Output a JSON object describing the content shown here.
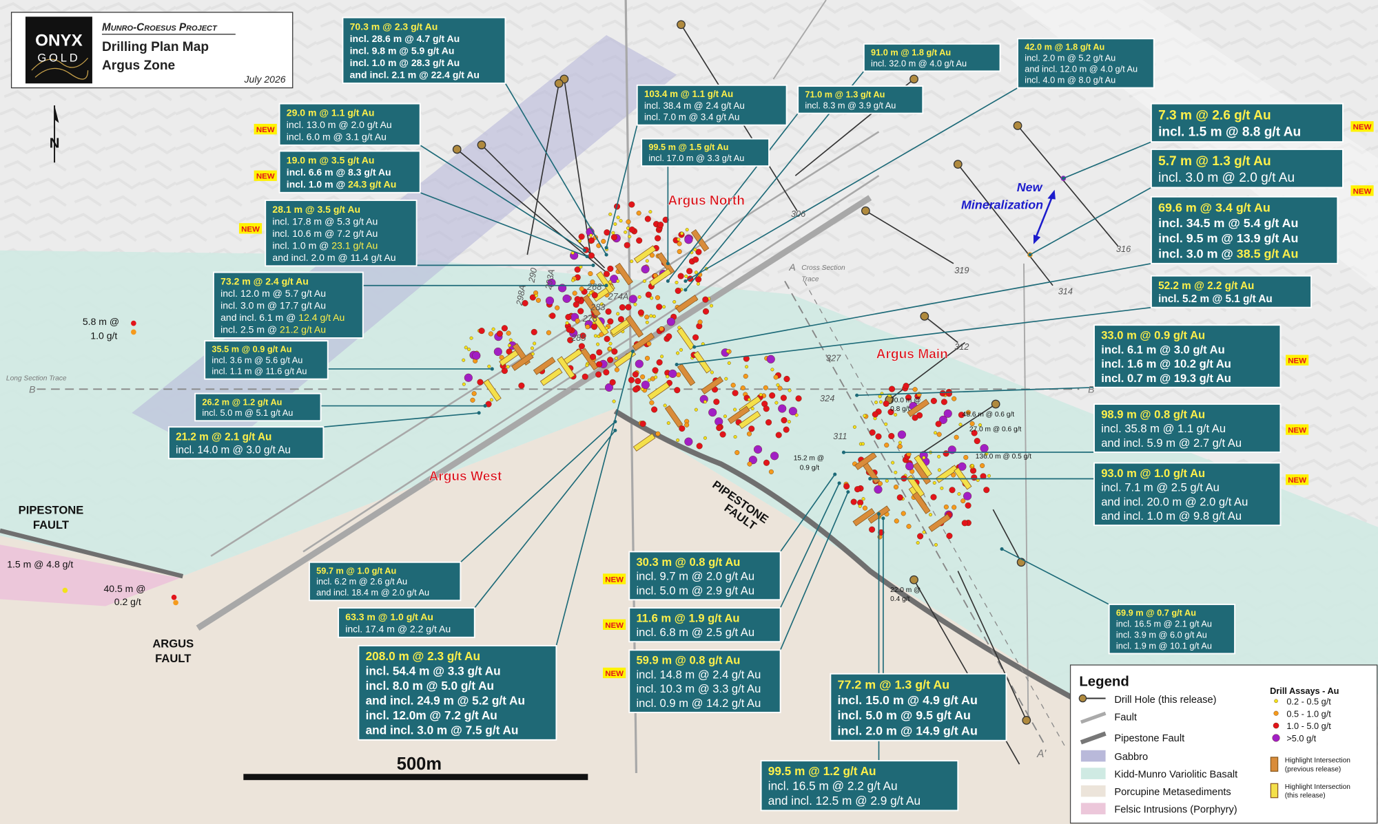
{
  "header": {
    "logo_top": "ONYX",
    "logo_bottom": "GOLD",
    "project": "Munro-Croesus Project",
    "title": "Drilling Plan Map",
    "subtitle": "Argus Zone",
    "date": "July 2026"
  },
  "north": "N",
  "callouts": [
    {
      "lines": [
        "70.3 m @ 2.3 g/t Au",
        "incl. 28.6 m @ 4.7 g/t Au",
        "incl. 9.8 m @ 5.9 g/t Au",
        "incl. 1.0 m @ 28.3 g/t Au",
        "and incl. 2.1 m @ 22.4 g/t Au"
      ]
    },
    {
      "lines": [
        "29.0 m @ 1.1 g/t Au",
        "incl. 13.0 m @ 2.0 g/t Au",
        "incl. 6.0 m @ 3.1 g/t Au"
      ],
      "new": "NEW"
    },
    {
      "lines": [
        "19.0 m @ 3.5 g/t Au",
        "incl. 6.6 m @ 8.3 g/t Au",
        [
          "incl. 1.0 m @ ",
          "24.3 g/t Au"
        ]
      ],
      "new": "NEW"
    },
    {
      "lines": [
        "28.1 m @ 3.5 g/t Au",
        "incl. 17.8 m @ 5.3 g/t Au",
        "incl. 10.6 m @ 7.2 g/t Au",
        [
          "incl. 1.0 m @ ",
          "23.1 g/t Au"
        ],
        "and incl. 2.0 m @ 11.4 g/t Au"
      ],
      "new": "NEW"
    },
    {
      "lines": [
        "73.2 m @ 2.4 g/t Au",
        "incl. 12.0 m @ 5.7 g/t Au",
        "incl. 3.0 m @ 17.7 g/t Au",
        [
          "and incl. 6.1 m @ ",
          "12.4 g/t Au"
        ],
        [
          "incl. 2.5 m @ ",
          "21.2 g/t Au"
        ]
      ]
    },
    {
      "lines": [
        "35.5 m @ 0.9 g/t Au",
        "incl. 3.6 m @ 5.6 g/t Au",
        "incl. 1.1 m @ 11.6 g/t Au"
      ]
    },
    {
      "lines": [
        "26.2 m @ 1.2 g/t Au",
        "incl. 5.0 m @ 5.1 g/t Au"
      ]
    },
    {
      "lines": [
        "21.2 m @ 2.1 g/t Au",
        "incl. 14.0 m @ 3.0 g/t Au"
      ]
    },
    {
      "lines": [
        "103.4 m @ 1.1 g/t Au",
        "incl. 38.4 m @ 2.4 g/t Au",
        "incl. 7.0 m @ 3.4 g/t Au"
      ]
    },
    {
      "lines": [
        "99.5 m @ 1.5 g/t Au",
        "incl. 17.0 m @ 3.3 g/t Au"
      ]
    },
    {
      "lines": [
        "91.0 m @ 1.8 g/t Au",
        "incl. 32.0 m @ 4.0 g/t Au"
      ]
    },
    {
      "lines": [
        "71.0 m @ 1.3 g/t Au",
        "incl. 8.3 m @ 3.9 g/t Au"
      ]
    },
    {
      "lines": [
        "42.0 m @ 1.8 g/t Au",
        "incl. 2.0 m @ 5.2 g/t Au",
        "and incl. 12.0 m @ 4.0 g/t Au",
        "incl. 4.0 m @ 8.0 g/t Au"
      ]
    },
    {
      "lines": [
        "7.3 m @ 2.6 g/t Au",
        "incl. 1.5 m @ 8.8 g/t Au"
      ],
      "new": "NEW"
    },
    {
      "lines": [
        "5.7 m @ 1.3 g/t Au",
        "incl. 3.0 m @ 2.0 g/t Au"
      ],
      "new": "NEW"
    },
    {
      "lines": [
        "69.6 m @ 3.4 g/t Au",
        "incl. 34.5 m @ 5.4 g/t Au",
        "incl. 9.5 m @ 13.9 g/t Au",
        [
          "incl. 3.0 m @ ",
          "38.5 g/t Au"
        ]
      ]
    },
    {
      "lines": [
        "52.2 m @ 2.2 g/t Au",
        "incl. 5.2 m @ 5.1 g/t Au"
      ]
    },
    {
      "lines": [
        "33.0 m @ 0.9 g/t Au",
        "incl. 6.1 m @ 3.0 g/t Au",
        "incl. 1.6 m @ 10.2 g/t Au",
        "incl. 0.7 m @ 19.3 g/t Au"
      ],
      "new": "NEW"
    },
    {
      "lines": [
        "98.9 m @ 0.8 g/t Au",
        "incl. 35.8 m @ 1.1 g/t Au",
        "and incl. 5.9 m @ 2.7 g/t Au"
      ],
      "new": "NEW"
    },
    {
      "lines": [
        "93.0 m @ 1.0 g/t Au",
        "incl. 7.1 m @ 2.5 g/t Au",
        "and incl. 20.0 m @ 2.0 g/t Au",
        "and incl. 1.0 m @ 9.8 g/t Au"
      ],
      "new": "NEW"
    },
    {
      "lines": [
        "69.9 m @ 0.7 g/t Au",
        "incl. 16.5 m @ 2.1 g/t Au",
        "incl. 3.9 m @ 6.0 g/t Au",
        "incl. 1.9 m @ 10.1 g/t Au"
      ]
    },
    {
      "lines": [
        "59.7 m @ 1.0 g/t Au",
        "incl. 6.2 m @ 2.6 g/t Au",
        "and incl. 18.4 m @ 2.0 g/t Au"
      ]
    },
    {
      "lines": [
        "63.3 m @ 1.0 g/t Au",
        "incl. 17.4 m @ 2.2 g/t Au"
      ]
    },
    {
      "lines": [
        "208.0 m @ 2.3 g/t Au",
        "incl. 54.4 m @ 3.3 g/t Au",
        "incl. 8.0 m @ 5.0 g/t Au",
        "and incl. 24.9 m @ 5.2 g/t Au",
        "incl. 12.0m @ 7.2 g/t Au",
        "and incl. 3.0 m @ 7.5 g/t Au"
      ]
    },
    {
      "lines": [
        "30.3 m @ 0.8 g/t Au",
        "incl. 9.7 m @ 2.0 g/t Au",
        "incl. 5.0 m @ 2.9 g/t Au"
      ],
      "new": "NEW"
    },
    {
      "lines": [
        "11.6 m @ 1.9 g/t Au",
        "incl. 6.8 m @ 2.5 g/t Au"
      ],
      "new": "NEW"
    },
    {
      "lines": [
        "59.9 m @ 0.8 g/t Au",
        "incl. 14.8 m @ 2.4 g/t Au",
        "incl. 10.3 m @ 3.3 g/t Au",
        "incl. 0.9 m @ 14.2 g/t Au"
      ],
      "new": "NEW"
    },
    {
      "lines": [
        "77.2 m @ 1.3 g/t Au",
        "incl. 15.0 m @ 4.9 g/t Au",
        "incl. 5.0 m @ 9.5 g/t Au",
        "incl. 2.0 m @ 14.9 g/t Au"
      ]
    },
    {
      "lines": [
        "99.5 m @ 1.2 g/t Au",
        "incl. 16.5 m @ 2.2 g/t Au",
        "and incl. 12.5 m @ 2.9 g/t Au"
      ]
    }
  ],
  "zone_labels": [
    "Argus North",
    "Argus Main",
    "Argus West"
  ],
  "new_mineralization": [
    "New",
    "Mineralization"
  ],
  "fault_labels": [
    "PIPESTONE",
    "FAULT",
    "PIPESTONE",
    "FAULT",
    "ARGUS",
    "FAULT"
  ],
  "sections": [
    "Cross Section",
    "Trace",
    "A",
    "A'",
    "Long Section Trace",
    "B",
    "B'"
  ],
  "hole_ids": [
    "306",
    "319",
    "316",
    "314",
    "312",
    "290",
    "293A",
    "298A",
    "268",
    "274A",
    "283",
    "278",
    "285",
    "327",
    "324",
    "311"
  ],
  "assay_notes": [
    "5.8 m @",
    "1.0 g/t",
    "1.5 m @ 4.8 g/t",
    "40.5 m @",
    "0.2 g/t",
    "70.0 m @",
    "0.8 g/t",
    "48.6 m @ 0.6 g/t",
    "27.0 m @ 0.6 g/t",
    "136.0 m @ 0.5 g/t",
    "15.2 m @",
    "0.9 g/t",
    "22.0 m @",
    "0.4 g/t"
  ],
  "scale_bar": "500m",
  "legend": {
    "title": "Legend",
    "items": [
      "Drill Hole (this release)",
      "Fault",
      "Pipestone Fault",
      "Gabbro",
      "Kidd-Munro Variolitic Basalt",
      "Porcupine Metasediments",
      "Felsic Intrusions (Porphyry)"
    ],
    "assay_title": "Drill Assays - Au",
    "assays": [
      "0.2 - 0.5 g/t",
      "0.5 - 1.0 g/t",
      "1.0 - 5.0 g/t",
      ">5.0 g/t"
    ],
    "highlights": [
      [
        "Highlight Intersection",
        "(previous release)"
      ],
      [
        "Highlight Intersection",
        "(this release)"
      ]
    ]
  }
}
